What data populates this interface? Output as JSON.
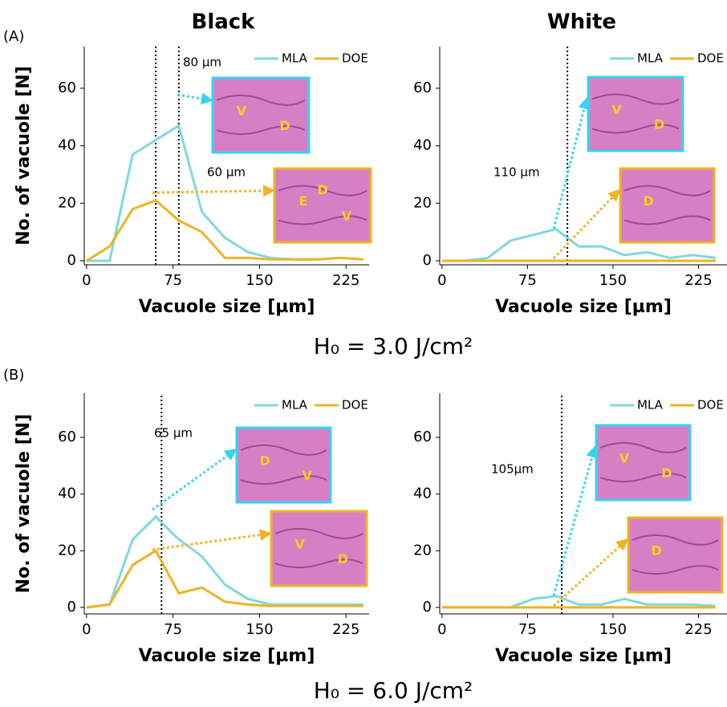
{
  "figure": {
    "column_titles": [
      "Black",
      "White"
    ],
    "row_labels": [
      "(A)",
      "(B)"
    ],
    "captions": [
      "H₀ = 3.0 J/cm²",
      "H₀ = 6.0 J/cm²"
    ]
  },
  "chart_data": [
    {
      "type": "line",
      "xlabel": "Vacuole size [µm]",
      "ylabel": "No. of vacuole [N]",
      "x": [
        0,
        20,
        40,
        60,
        80,
        100,
        120,
        140,
        160,
        180,
        200,
        220,
        240
      ],
      "series": [
        {
          "name": "MLA",
          "color": "#7fd8e0",
          "values": [
            0,
            0,
            37,
            42,
            47,
            17,
            8,
            3,
            1,
            0.5,
            0.5,
            1,
            0.5
          ]
        },
        {
          "name": "DOE",
          "color": "#f0b323",
          "values": [
            0,
            5,
            18,
            21,
            14,
            10,
            1,
            1,
            0.5,
            0.5,
            0.5,
            1,
            0.5
          ]
        }
      ],
      "xlim": [
        -2,
        245
      ],
      "ylim": [
        -1.4,
        74.5
      ],
      "xticks": [
        0,
        75,
        150,
        225
      ],
      "yticks": [
        0,
        20,
        40,
        60
      ],
      "legend": "top-right",
      "vlines": [
        {
          "x": 60,
          "label": "60 µm"
        },
        {
          "x": 80,
          "label": "80 µm"
        }
      ],
      "insets": [
        {
          "color": "#33d6f0",
          "labels": [
            "V",
            "D"
          ]
        },
        {
          "color": "#f0b323",
          "labels": [
            "E",
            "V",
            "D"
          ]
        }
      ]
    },
    {
      "type": "line",
      "xlabel": "Vacuole size [µm]",
      "x": [
        0,
        20,
        40,
        60,
        80,
        100,
        120,
        140,
        160,
        180,
        200,
        220,
        240
      ],
      "series": [
        {
          "name": "MLA",
          "color": "#7fd8e0",
          "values": [
            0,
            0,
            1,
            7,
            9,
            11,
            5,
            5,
            2,
            3,
            1,
            2,
            1
          ]
        },
        {
          "name": "DOE",
          "color": "#f0b323",
          "values": [
            0,
            0,
            0,
            0,
            0,
            0,
            0,
            0,
            0,
            0,
            0,
            0,
            0
          ]
        }
      ],
      "xlim": [
        -2,
        250
      ],
      "ylim": [
        -1.4,
        74.5
      ],
      "xticks": [
        0,
        75,
        150,
        225
      ],
      "yticks": [
        0,
        20,
        40,
        60
      ],
      "legend": "top-right",
      "vlines": [
        {
          "x": 110,
          "label": "110 µm"
        }
      ],
      "insets": [
        {
          "color": "#33d6f0",
          "labels": [
            "V",
            "D"
          ]
        },
        {
          "color": "#f0b323",
          "labels": [
            "D"
          ]
        }
      ]
    },
    {
      "type": "line",
      "xlabel": "Vacuole size [µm]",
      "ylabel": "No. of vacuole [N]",
      "x": [
        0,
        20,
        40,
        60,
        80,
        100,
        120,
        140,
        160,
        180,
        200,
        220,
        240
      ],
      "series": [
        {
          "name": "MLA",
          "color": "#7fd8e0",
          "values": [
            0,
            1,
            24,
            32,
            24,
            18,
            8,
            3,
            1,
            1,
            1,
            1,
            1
          ]
        },
        {
          "name": "DOE",
          "color": "#f0b323",
          "values": [
            0,
            1,
            15,
            20,
            5,
            7,
            2,
            1,
            0.5,
            0.5,
            0.5,
            0.5,
            0.5
          ]
        }
      ],
      "xlim": [
        -2,
        245
      ],
      "ylim": [
        -2.3,
        75.6
      ],
      "xticks": [
        0,
        75,
        150,
        225
      ],
      "yticks": [
        0,
        20,
        40,
        60
      ],
      "legend": "top-right",
      "vlines": [
        {
          "x": 65,
          "label": "65 µm"
        }
      ],
      "insets": [
        {
          "color": "#33d6f0",
          "labels": [
            "D",
            "V"
          ]
        },
        {
          "color": "#f0b323",
          "labels": [
            "V",
            "D"
          ]
        }
      ]
    },
    {
      "type": "line",
      "xlabel": "Vacuole size [µm]",
      "x": [
        0,
        20,
        40,
        60,
        80,
        100,
        120,
        140,
        160,
        180,
        200,
        220,
        240
      ],
      "series": [
        {
          "name": "MLA",
          "color": "#7fd8e0",
          "values": [
            0,
            0,
            0,
            0,
            3,
            4,
            1,
            1,
            3,
            1,
            1,
            1,
            0.5
          ]
        },
        {
          "name": "DOE",
          "color": "#f0b323",
          "values": [
            0,
            0,
            0,
            0,
            0,
            0,
            0,
            0,
            0,
            0,
            0,
            0,
            0
          ]
        }
      ],
      "xlim": [
        -2,
        250
      ],
      "ylim": [
        -2.3,
        75.6
      ],
      "xticks": [
        0,
        75,
        150,
        225
      ],
      "yticks": [
        0,
        20,
        40,
        60
      ],
      "legend": "top-right",
      "vlines": [
        {
          "x": 105,
          "label": "105µm"
        }
      ],
      "insets": [
        {
          "color": "#33d6f0",
          "labels": [
            "V",
            "D"
          ]
        },
        {
          "color": "#f0b323",
          "labels": [
            "D"
          ]
        }
      ]
    }
  ]
}
